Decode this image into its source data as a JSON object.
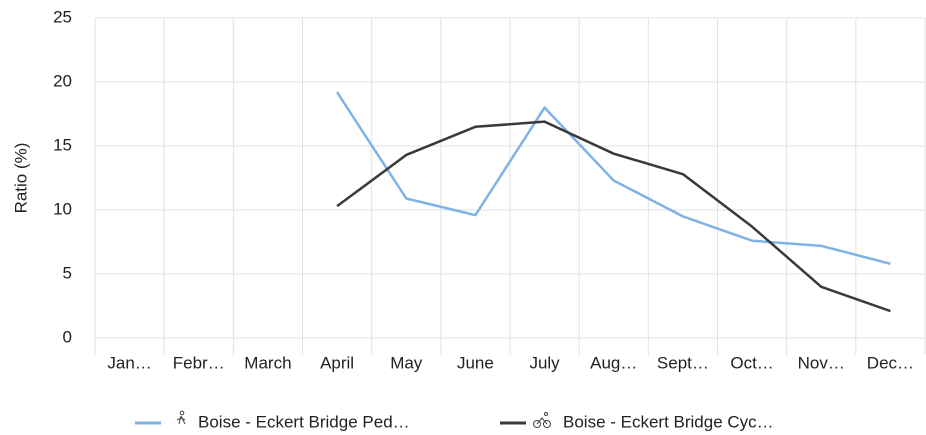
{
  "chart_data": {
    "type": "line",
    "y_label": "Ratio (%)",
    "categories": [
      "Jan…",
      "Febr…",
      "March",
      "April",
      "May",
      "June",
      "July",
      "Aug…",
      "Sept…",
      "Oct…",
      "Nov…",
      "Dec…"
    ],
    "series": [
      {
        "name": "Boise - Eckert Bridge Ped…",
        "color": "#7fb2e5",
        "values": [
          null,
          null,
          null,
          19.2,
          10.9,
          9.6,
          18.0,
          12.3,
          9.5,
          7.6,
          7.2,
          5.8
        ]
      },
      {
        "name": "Boise - Eckert Bridge Cyc…",
        "color": "#3a3a3a",
        "values": [
          null,
          null,
          null,
          10.3,
          14.3,
          16.5,
          16.9,
          14.4,
          12.8,
          8.7,
          4.0,
          2.1
        ]
      }
    ],
    "ylim": [
      0,
      25
    ],
    "yticks": [
      0,
      5,
      10,
      15,
      20,
      25
    ],
    "grid": true
  }
}
